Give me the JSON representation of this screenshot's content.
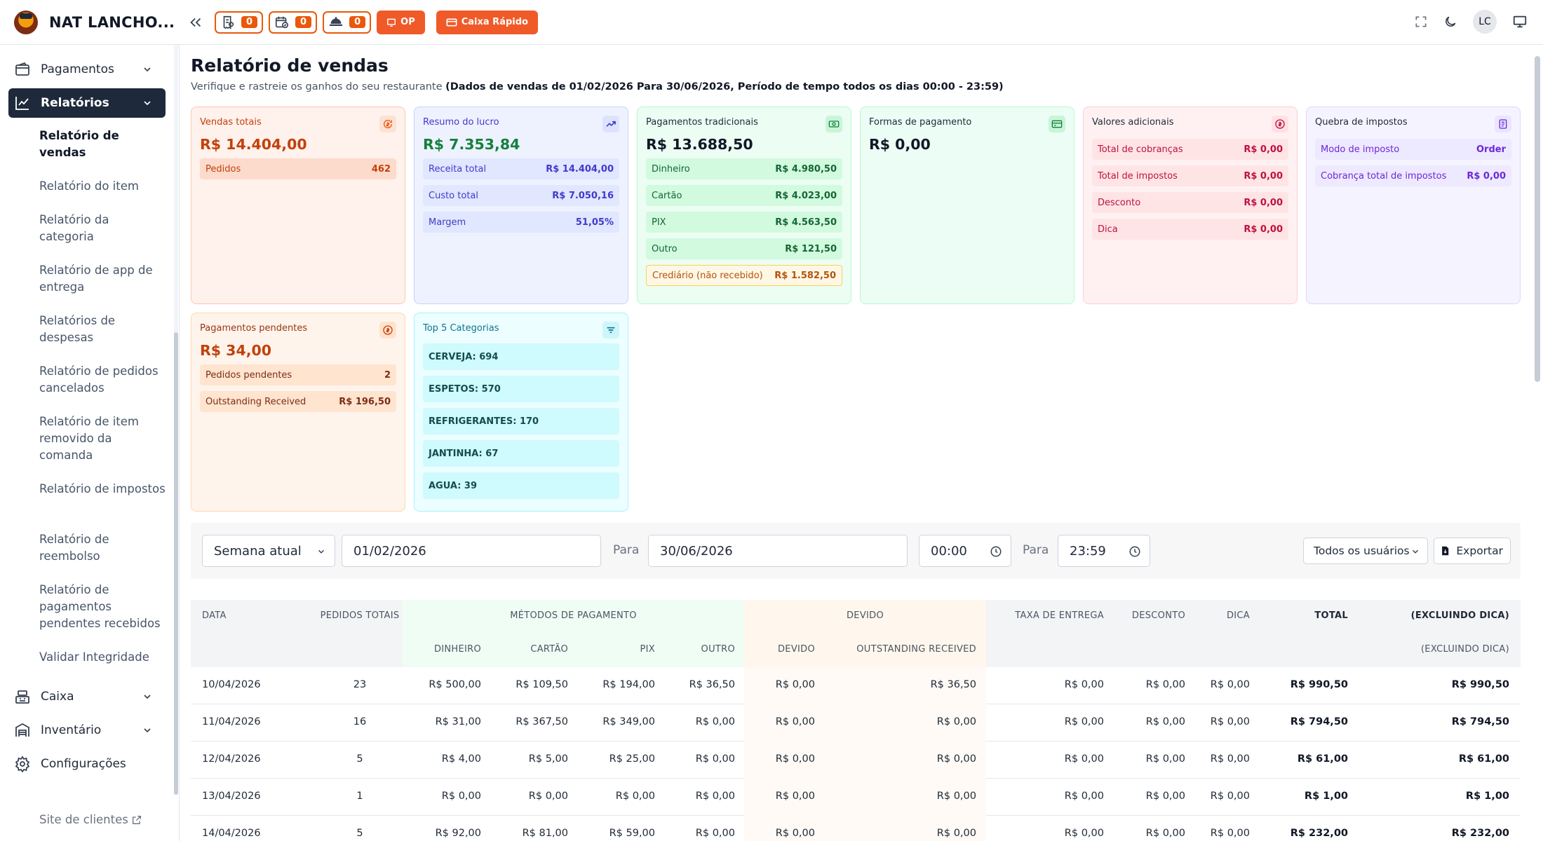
{
  "app": {
    "name": "NAT LANCHO..."
  },
  "topbar": {
    "badges": [
      {
        "icon": "receipt-icon",
        "count": "0"
      },
      {
        "icon": "calendar-check-icon",
        "count": "0"
      },
      {
        "icon": "delivery-icon",
        "count": "0"
      }
    ],
    "op_label": "OP",
    "caixa_label": "Caixa Rápido",
    "user_initials": "LC"
  },
  "sidebar": {
    "groups": {
      "pagamentos": "Pagamentos",
      "relatorios": "Relatórios",
      "caixa": "Caixa",
      "inventario": "Inventário",
      "configuracoes": "Configurações"
    },
    "sub_items": [
      "Relatório de vendas",
      "Relatório do item",
      "Relatório da categoria",
      "Relatório de app de entrega",
      "Relatórios de despesas",
      "Relatório de pedidos cancelados",
      "Relatório de item removido da comanda",
      "Relatório de impostos",
      "Relatório de reembolso",
      "Relatório de pagamentos pendentes recebidos",
      "Validar Integridade"
    ],
    "site_link": "Site de clientes"
  },
  "page": {
    "title": "Relatório de vendas",
    "subtitle": "Verifique e rastreie os ganhos do seu restaurante",
    "subtitle_bold": "(Dados de vendas de 01/02/2026 Para 30/06/2026, Período de tempo todos os dias 00:00 - 23:59)"
  },
  "cards": {
    "vendas": {
      "title": "Vendas totais",
      "value": "R$ 14.404,00",
      "rows": [
        {
          "label": "Pedidos",
          "value": "462"
        }
      ]
    },
    "lucro": {
      "title": "Resumo do lucro",
      "value": "R$ 7.353,84",
      "rows": [
        {
          "label": "Receita total",
          "value": "R$ 14.404,00"
        },
        {
          "label": "Custo total",
          "value": "R$ 7.050,16"
        },
        {
          "label": "Margem",
          "value": "51,05%"
        }
      ]
    },
    "tradicionais": {
      "title": "Pagamentos tradicionais",
      "value": "R$ 13.688,50",
      "rows": [
        {
          "label": "Dinheiro",
          "value": "R$ 4.980,50"
        },
        {
          "label": "Cartão",
          "value": "R$ 4.023,00"
        },
        {
          "label": "PIX",
          "value": "R$ 4.563,50"
        },
        {
          "label": "Outro",
          "value": "R$ 121,50"
        },
        {
          "label": "Crediário (não recebido)",
          "value": "R$ 1.582,50"
        }
      ]
    },
    "formas": {
      "title": "Formas de pagamento",
      "value": "R$ 0,00"
    },
    "adicionais": {
      "title": "Valores adicionais",
      "rows": [
        {
          "label": "Total de cobranças",
          "value": "R$ 0,00"
        },
        {
          "label": "Total de impostos",
          "value": "R$ 0,00"
        },
        {
          "label": "Desconto",
          "value": "R$ 0,00"
        },
        {
          "label": "Dica",
          "value": "R$ 0,00"
        }
      ]
    },
    "impostos": {
      "title": "Quebra de impostos",
      "rows": [
        {
          "label": "Modo de imposto",
          "value": "Order"
        },
        {
          "label": "Cobrança total de impostos",
          "value": "R$ 0,00"
        }
      ]
    },
    "pendentes": {
      "title": "Pagamentos pendentes",
      "value": "R$ 34,00",
      "rows": [
        {
          "label": "Pedidos pendentes",
          "value": "2"
        },
        {
          "label": "Outstanding Received",
          "value": "R$ 196,50"
        }
      ]
    },
    "top5": {
      "title": "Top 5 Categorias",
      "items": [
        "CERVEJA: 694",
        "ESPETOS: 570",
        "REFRIGERANTES: 170",
        "JANTINHA: 67",
        "AGUA: 39"
      ]
    }
  },
  "filters": {
    "period": "Semana atual",
    "date_from": "01/02/2026",
    "para1": "Para",
    "date_to": "30/06/2026",
    "time_from": "00:00",
    "para2": "Para",
    "time_to": "23:59",
    "users": "Todos os usuários",
    "export": "Exportar"
  },
  "table": {
    "headers": {
      "data": "DATA",
      "pedidos": "PEDIDOS TOTAIS",
      "metodos": "MÉTODOS DE PAGAMENTO",
      "devido_group": "DEVIDO",
      "taxa": "TAXA DE ENTREGA",
      "desconto": "DESCONTO",
      "dica": "DICA",
      "total": "TOTAL",
      "excl_group": "(EXCLUINDO DICA)",
      "dinheiro": "DINHEIRO",
      "cartao": "CARTÃO",
      "pix": "PIX",
      "outro": "OUTRO",
      "devido": "DEVIDO",
      "outstanding": "OUTSTANDING RECEIVED",
      "excl": "(EXCLUINDO DICA)"
    },
    "rows": [
      [
        "10/04/2026",
        "23",
        "R$ 500,00",
        "R$ 109,50",
        "R$ 194,00",
        "R$ 36,50",
        "R$ 0,00",
        "R$ 36,50",
        "R$ 0,00",
        "R$ 0,00",
        "R$ 0,00",
        "R$ 990,50",
        "R$ 990,50"
      ],
      [
        "11/04/2026",
        "16",
        "R$ 31,00",
        "R$ 367,50",
        "R$ 349,00",
        "R$ 0,00",
        "R$ 0,00",
        "R$ 0,00",
        "R$ 0,00",
        "R$ 0,00",
        "R$ 0,00",
        "R$ 794,50",
        "R$ 794,50"
      ],
      [
        "12/04/2026",
        "5",
        "R$ 4,00",
        "R$ 5,00",
        "R$ 25,00",
        "R$ 0,00",
        "R$ 0,00",
        "R$ 0,00",
        "R$ 0,00",
        "R$ 0,00",
        "R$ 0,00",
        "R$ 61,00",
        "R$ 61,00"
      ],
      [
        "13/04/2026",
        "1",
        "R$ 0,00",
        "R$ 0,00",
        "R$ 0,00",
        "R$ 0,00",
        "R$ 0,00",
        "R$ 0,00",
        "R$ 0,00",
        "R$ 0,00",
        "R$ 0,00",
        "R$ 1,00",
        "R$ 1,00"
      ],
      [
        "14/04/2026",
        "5",
        "R$ 92,00",
        "R$ 81,00",
        "R$ 59,00",
        "R$ 0,00",
        "R$ 0,00",
        "R$ 0,00",
        "R$ 0,00",
        "R$ 0,00",
        "R$ 0,00",
        "R$ 232,00",
        "R$ 232,00"
      ]
    ]
  }
}
